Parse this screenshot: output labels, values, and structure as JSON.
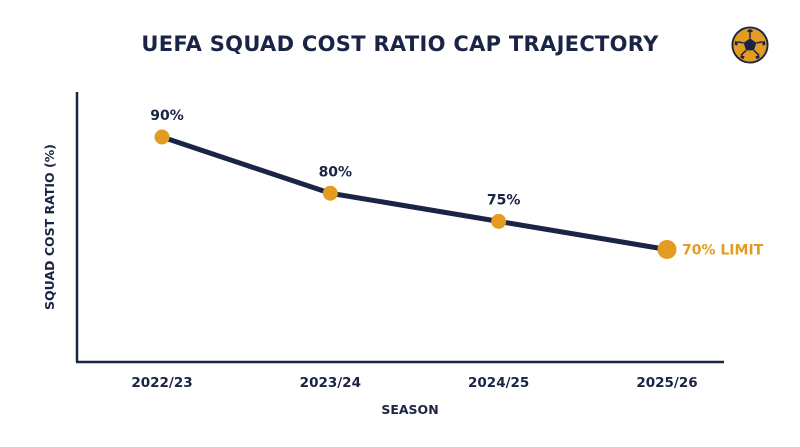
{
  "colors": {
    "line": "#1a2444",
    "marker": "#e39b22",
    "text": "#1a2444",
    "highlight_text": "#e39b22",
    "axis": "#1a2444"
  },
  "logo": {
    "icon": "football-icon"
  },
  "chart_data": {
    "type": "line",
    "title": "UEFA SQUAD COST RATIO CAP TRAJECTORY",
    "xlabel": "SEASON",
    "ylabel": "SQUAD COST RATIO (%)",
    "categories": [
      "2022/23",
      "2023/24",
      "2024/25",
      "2025/26"
    ],
    "values": [
      90,
      80,
      75,
      70
    ],
    "data_labels": [
      "90%",
      "80%",
      "75%",
      "70% LIMIT"
    ],
    "ylim": [
      50,
      98
    ],
    "grid": false,
    "highlight_last": true
  }
}
